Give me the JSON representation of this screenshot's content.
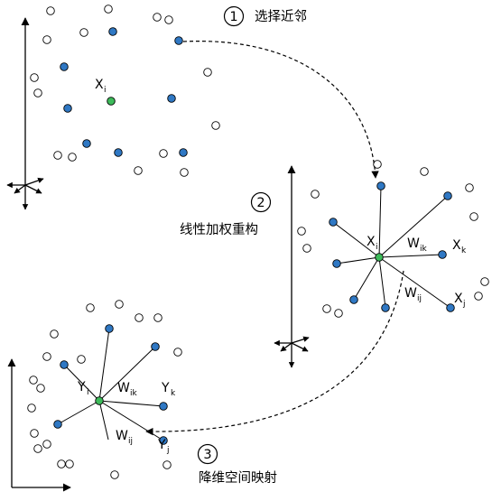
{
  "steps": [
    {
      "number": "1",
      "label": "选择近邻"
    },
    {
      "number": "2",
      "label": "线性加权重构"
    },
    {
      "number": "3",
      "label": "降维空间映射"
    }
  ],
  "panel1": {
    "center_symbol": "X",
    "center_subscript": "i"
  },
  "panel2": {
    "center_symbol": "X",
    "center_subscript": "i",
    "neighbor_k_symbol": "X",
    "neighbor_k_subscript": "k",
    "neighbor_j_symbol": "X",
    "neighbor_j_subscript": "j",
    "weight_k_symbol": "W",
    "weight_k_subscript": "ik",
    "weight_j_symbol": "W",
    "weight_j_subscript": "ij"
  },
  "panel3": {
    "center_symbol": "Y",
    "center_subscript": "i",
    "neighbor_k_symbol": "Y",
    "neighbor_k_subscript": "k",
    "neighbor_j_symbol": "Y",
    "neighbor_j_subscript": "j",
    "weight_k_symbol": "W",
    "weight_k_subscript": "ik",
    "weight_j_symbol": "W",
    "weight_j_subscript": "ij"
  },
  "colors": {
    "neighbor_fill": "#2f78c4",
    "center_fill": "#3dbb5a",
    "other_fill": "#ffffff",
    "stroke": "#000000"
  }
}
